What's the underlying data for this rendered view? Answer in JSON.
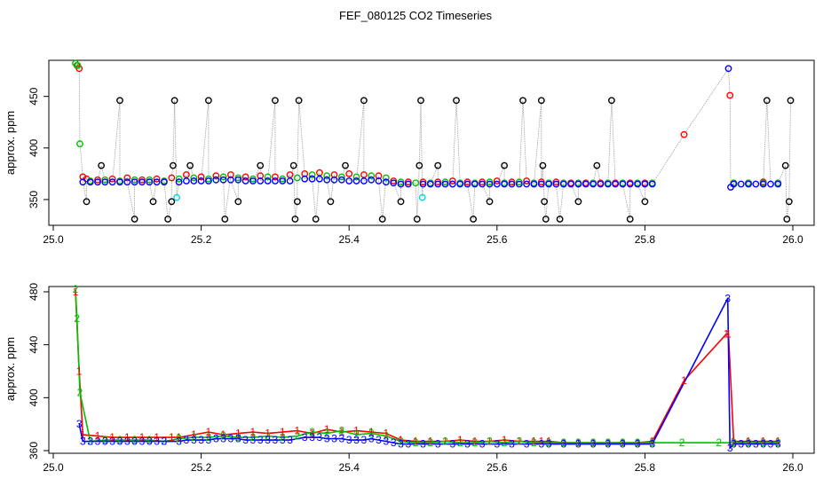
{
  "title": "FEF_080125  CO2 Timeseries",
  "chart_data": [
    {
      "type": "scatter",
      "ylabel": "approx. ppm",
      "xlim": [
        25.0,
        26.0
      ],
      "ylim": [
        325,
        485
      ],
      "xticks": [
        "25.0",
        "25.2",
        "25.4",
        "25.6",
        "25.8",
        "26.0"
      ],
      "yticks": [
        "350",
        "400",
        "450"
      ],
      "series": [
        {
          "color": "#000000",
          "marker": "circle",
          "x": [
            25.045,
            25.065,
            25.09,
            25.11,
            25.135,
            25.155,
            25.16,
            25.162,
            25.164,
            25.185,
            25.21,
            25.232,
            25.25,
            25.28,
            25.3,
            25.325,
            25.327,
            25.33,
            25.332,
            25.355,
            25.375,
            25.395,
            25.42,
            25.445,
            25.47,
            25.492,
            25.495,
            25.497,
            25.52,
            25.545,
            25.568,
            25.59,
            25.61,
            25.635,
            25.66,
            25.662,
            25.664,
            25.666,
            25.685,
            25.71,
            25.735,
            25.755,
            25.78,
            25.8,
            25.965,
            25.99,
            25.992,
            25.995,
            25.997
          ],
          "y": [
            348,
            383,
            446,
            331,
            348,
            331,
            348,
            383,
            446,
            383,
            446,
            331,
            348,
            383,
            446,
            383,
            331,
            348,
            446,
            331,
            348,
            383,
            446,
            331,
            348,
            331,
            383,
            446,
            383,
            446,
            331,
            348,
            383,
            446,
            446,
            383,
            348,
            331,
            331,
            348,
            383,
            446,
            331,
            348,
            446,
            383,
            331,
            348,
            446
          ]
        },
        {
          "color": "#ff0000",
          "marker": "circle",
          "x": [
            25.032,
            25.035,
            25.04,
            25.045,
            25.06,
            25.08,
            25.1,
            25.12,
            25.14,
            25.16,
            25.18,
            25.2,
            25.22,
            25.24,
            25.26,
            25.28,
            25.3,
            25.32,
            25.34,
            25.36,
            25.38,
            25.4,
            25.42,
            25.44,
            25.46,
            25.48,
            25.5,
            25.52,
            25.54,
            25.56,
            25.58,
            25.6,
            25.62,
            25.64,
            25.66,
            25.68,
            25.7,
            25.72,
            25.74,
            25.76,
            25.78,
            25.8,
            25.853,
            25.915,
            25.92,
            25.94,
            25.96,
            25.98
          ],
          "y": [
            480,
            477,
            372,
            370,
            369,
            370,
            371,
            369,
            370,
            371,
            374,
            372,
            373,
            374,
            372,
            373,
            372,
            374,
            375,
            376,
            374,
            375,
            374,
            373,
            368,
            367,
            367,
            367,
            368,
            367,
            367,
            368,
            367,
            368,
            367,
            367,
            366,
            366,
            366,
            366,
            366,
            366,
            413,
            451,
            366,
            366,
            367,
            366
          ]
        },
        {
          "color": "#00c000",
          "marker": "circle",
          "x": [
            25.03,
            25.033,
            25.036,
            25.05,
            25.07,
            25.09,
            25.11,
            25.13,
            25.15,
            25.17,
            25.19,
            25.21,
            25.23,
            25.25,
            25.27,
            25.29,
            25.31,
            25.33,
            25.35,
            25.37,
            25.39,
            25.41,
            25.43,
            25.45,
            25.47,
            25.49,
            25.51,
            25.53,
            25.55,
            25.57,
            25.59,
            25.61,
            25.63,
            25.65,
            25.67,
            25.69,
            25.71,
            25.73,
            25.75,
            25.77,
            25.79,
            25.81,
            25.92,
            25.94,
            25.96,
            25.98
          ],
          "y": [
            482,
            480,
            404,
            368,
            369,
            368,
            369,
            369,
            368,
            370,
            371,
            370,
            372,
            371,
            370,
            372,
            370,
            371,
            374,
            373,
            372,
            372,
            373,
            371,
            367,
            366,
            366,
            367,
            366,
            366,
            367,
            366,
            367,
            366,
            366,
            366,
            366,
            366,
            366,
            366,
            366,
            366,
            366,
            366,
            366,
            366
          ]
        },
        {
          "color": "#00d8d8",
          "marker": "circle",
          "x": [
            25.167,
            25.499
          ],
          "y": [
            352,
            352
          ]
        },
        {
          "color": "#0000ff",
          "marker": "circle",
          "x": [
            25.04,
            25.05,
            25.06,
            25.07,
            25.08,
            25.09,
            25.1,
            25.11,
            25.12,
            25.13,
            25.14,
            25.15,
            25.17,
            25.18,
            25.19,
            25.2,
            25.21,
            25.22,
            25.23,
            25.24,
            25.25,
            25.26,
            25.27,
            25.28,
            25.29,
            25.3,
            25.31,
            25.32,
            25.34,
            25.35,
            25.36,
            25.37,
            25.38,
            25.39,
            25.4,
            25.41,
            25.42,
            25.43,
            25.44,
            25.45,
            25.46,
            25.47,
            25.48,
            25.5,
            25.51,
            25.52,
            25.53,
            25.54,
            25.55,
            25.56,
            25.57,
            25.58,
            25.59,
            25.6,
            25.61,
            25.62,
            25.63,
            25.64,
            25.65,
            25.66,
            25.67,
            25.68,
            25.69,
            25.7,
            25.71,
            25.72,
            25.73,
            25.74,
            25.75,
            25.76,
            25.77,
            25.78,
            25.79,
            25.8,
            25.81,
            25.913,
            25.916,
            25.92,
            25.93,
            25.94,
            25.95,
            25.96,
            25.97,
            25.98
          ],
          "y": [
            367,
            367,
            367,
            367,
            367,
            367,
            367,
            367,
            367,
            367,
            367,
            367,
            367,
            368,
            368,
            368,
            368,
            369,
            369,
            369,
            369,
            368,
            368,
            368,
            368,
            368,
            368,
            368,
            370,
            370,
            370,
            369,
            369,
            369,
            368,
            368,
            368,
            369,
            368,
            367,
            366,
            365,
            365,
            365,
            365,
            365,
            365,
            365,
            365,
            365,
            365,
            365,
            365,
            365,
            365,
            365,
            365,
            365,
            365,
            365,
            365,
            365,
            365,
            365,
            365,
            365,
            365,
            365,
            365,
            365,
            365,
            365,
            365,
            365,
            365,
            477,
            362,
            365,
            365,
            365,
            365,
            365,
            365,
            365
          ]
        }
      ]
    },
    {
      "type": "line",
      "ylabel": "approx. ppm",
      "xlim": [
        25.0,
        26.0
      ],
      "ylim": [
        358,
        484
      ],
      "xticks": [
        "25.0",
        "25.2",
        "25.4",
        "25.6",
        "25.8",
        "26.0"
      ],
      "yticks": [
        "360",
        "400",
        "440",
        "480"
      ],
      "series": [
        {
          "label": "1",
          "color": "#ff0000",
          "x": [
            25.03,
            25.035,
            25.04,
            25.06,
            25.08,
            25.1,
            25.12,
            25.14,
            25.16,
            25.17,
            25.19,
            25.21,
            25.23,
            25.25,
            25.27,
            25.29,
            25.31,
            25.33,
            25.35,
            25.37,
            25.39,
            25.41,
            25.43,
            25.45,
            25.47,
            25.49,
            25.51,
            25.53,
            25.55,
            25.57,
            25.59,
            25.61,
            25.63,
            25.65,
            25.66,
            25.67,
            25.69,
            25.71,
            25.73,
            25.75,
            25.77,
            25.79,
            25.81,
            25.853,
            25.91,
            25.913,
            25.92,
            25.94,
            25.96,
            25.98
          ],
          "y": [
            480,
            420,
            372,
            371,
            370,
            370,
            370,
            370,
            370,
            370,
            372,
            374,
            372,
            373,
            374,
            373,
            374,
            375,
            373,
            376,
            374,
            375,
            374,
            373,
            368,
            367,
            367,
            367,
            368,
            367,
            367,
            368,
            367,
            367,
            367,
            367,
            366,
            366,
            366,
            366,
            366,
            366,
            367,
            413,
            448,
            448,
            367,
            367,
            367,
            367
          ]
        },
        {
          "label": "2",
          "color": "#00c000",
          "x": [
            25.03,
            25.032,
            25.036,
            25.05,
            25.07,
            25.09,
            25.11,
            25.13,
            25.15,
            25.17,
            25.19,
            25.21,
            25.23,
            25.25,
            25.27,
            25.29,
            25.31,
            25.33,
            25.35,
            25.37,
            25.39,
            25.41,
            25.43,
            25.45,
            25.47,
            25.49,
            25.51,
            25.53,
            25.55,
            25.57,
            25.59,
            25.61,
            25.63,
            25.65,
            25.67,
            25.69,
            25.71,
            25.73,
            25.75,
            25.77,
            25.79,
            25.81,
            25.85,
            25.9,
            25.92,
            25.94,
            25.96,
            25.98
          ],
          "y": [
            482,
            460,
            404,
            367,
            368,
            368,
            368,
            368,
            367,
            369,
            370,
            370,
            371,
            370,
            370,
            371,
            370,
            371,
            374,
            373,
            375,
            372,
            373,
            371,
            367,
            366,
            366,
            367,
            366,
            366,
            367,
            366,
            367,
            366,
            366,
            366,
            366,
            366,
            366,
            366,
            366,
            366,
            366,
            366,
            366,
            366,
            366,
            366
          ]
        },
        {
          "label": "3",
          "color": "#0000ff",
          "x": [
            25.035,
            25.04,
            25.05,
            25.06,
            25.07,
            25.08,
            25.09,
            25.1,
            25.11,
            25.12,
            25.13,
            25.14,
            25.15,
            25.17,
            25.18,
            25.19,
            25.2,
            25.21,
            25.22,
            25.23,
            25.24,
            25.25,
            25.26,
            25.27,
            25.28,
            25.29,
            25.3,
            25.31,
            25.32,
            25.34,
            25.35,
            25.36,
            25.37,
            25.38,
            25.39,
            25.4,
            25.41,
            25.42,
            25.43,
            25.44,
            25.45,
            25.46,
            25.47,
            25.48,
            25.5,
            25.52,
            25.54,
            25.56,
            25.58,
            25.6,
            25.62,
            25.64,
            25.66,
            25.67,
            25.69,
            25.71,
            25.73,
            25.75,
            25.77,
            25.79,
            25.81,
            25.912,
            25.915,
            25.92,
            25.93,
            25.94,
            25.95,
            25.96,
            25.97,
            25.98
          ],
          "y": [
            380,
            367,
            367,
            367,
            367,
            367,
            367,
            367,
            367,
            367,
            367,
            367,
            367,
            367,
            368,
            368,
            368,
            368,
            369,
            369,
            369,
            369,
            368,
            368,
            368,
            368,
            368,
            368,
            368,
            370,
            370,
            370,
            369,
            369,
            369,
            368,
            368,
            368,
            369,
            368,
            367,
            366,
            365,
            365,
            365,
            365,
            365,
            365,
            365,
            365,
            365,
            365,
            365,
            365,
            365,
            365,
            365,
            365,
            365,
            365,
            365,
            475,
            362,
            365,
            365,
            365,
            365,
            365,
            365,
            365
          ]
        }
      ]
    }
  ]
}
